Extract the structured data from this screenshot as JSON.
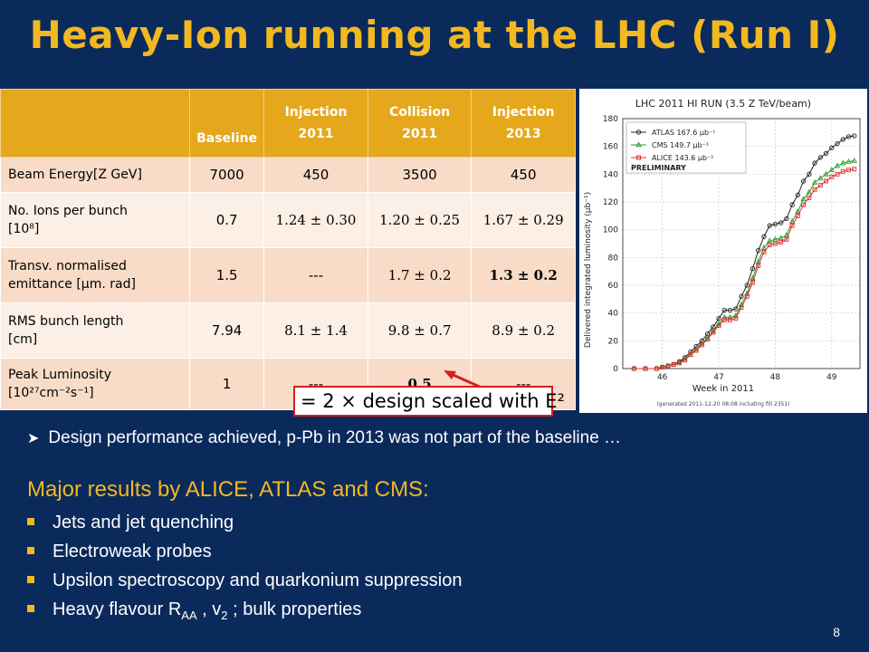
{
  "title": "Heavy-Ion running at the LHC  (Run I)",
  "table": {
    "headers": {
      "baseline": "Baseline",
      "inj2011": [
        "Injection",
        "2011"
      ],
      "col2011": [
        "Collision",
        "2011"
      ],
      "inj2013": [
        "Injection",
        "2013"
      ]
    },
    "rows": [
      {
        "param": "Beam Energy[Z GeV]",
        "values": [
          "7000",
          "450",
          "3500",
          "450"
        ]
      },
      {
        "param": "No. Ions per bunch",
        "unit": "[10⁸]",
        "values": [
          "0.7",
          "1.24 ± 0.30",
          "1.20 ± 0.25",
          "1.67 ± 0.29"
        ]
      },
      {
        "param": "Transv. normalised emittance",
        "unit": "[μm. rad]",
        "values": [
          "1.5",
          "---",
          "1.7 ± 0.2",
          "1.3 ± 0.2"
        ]
      },
      {
        "param": "RMS bunch length",
        "unit": "[cm]",
        "values": [
          "7.94",
          "8.1 ± 1.4",
          "9.8 ± 0.7",
          "8.9 ± 0.2"
        ]
      },
      {
        "param": "Peak Luminosity",
        "unit": "[10²⁷cm⁻²s⁻¹]",
        "values": [
          "1",
          "---",
          "0.5",
          "---"
        ]
      }
    ]
  },
  "callout": "= 2 × design scaled with E²",
  "design_note": "Design performance achieved,   p-Pb in 2013 was not part of the baseline …",
  "results": {
    "title": "Major results by ALICE, ATLAS and CMS:",
    "items": [
      "Jets and jet quenching",
      "Electroweak probes",
      "Upsilon spectroscopy and quarkonium suppression"
    ],
    "last_item": {
      "prefix": "Heavy flavour R",
      "sub1": "AA",
      "mid": " , v",
      "sub2": "2",
      "suffix": " ; bulk properties"
    }
  },
  "page_number": "8",
  "colors": {
    "background": "#0b2a5c",
    "accent": "#f2b820",
    "header": "#e5a81d",
    "atlas": "#222222",
    "cms": "#2a9d2a",
    "alice": "#e03030"
  },
  "chart_data": {
    "type": "line",
    "title": "LHC 2011 HI RUN (3.5 Z TeV/beam)",
    "xlabel": "Week in 2011",
    "ylabel": "Delivered integrated luminosity (μb⁻¹)",
    "xlim": [
      45.3,
      49.5
    ],
    "ylim": [
      0,
      180
    ],
    "xticks": [
      46,
      47,
      48,
      49
    ],
    "yticks": [
      0,
      20,
      40,
      60,
      80,
      100,
      120,
      140,
      160,
      180
    ],
    "grid": true,
    "legend_position": "top-left",
    "annotation": "PRELIMINARY",
    "footnote": "(generated 2011-12-20 08:08 including fill 2351)",
    "series": [
      {
        "name": "ATLAS 167.6 μb⁻¹",
        "color": "#222222",
        "marker": "circle",
        "x": [
          45.5,
          45.7,
          45.9,
          46.0,
          46.1,
          46.2,
          46.3,
          46.4,
          46.5,
          46.6,
          46.7,
          46.8,
          46.9,
          47.0,
          47.1,
          47.2,
          47.3,
          47.4,
          47.5,
          47.6,
          47.7,
          47.8,
          47.9,
          48.0,
          48.1,
          48.2,
          48.3,
          48.4,
          48.5,
          48.6,
          48.7,
          48.8,
          48.9,
          49.0,
          49.1,
          49.2,
          49.3,
          49.4
        ],
        "y": [
          0,
          0,
          0,
          1,
          2,
          3,
          5,
          8,
          12,
          16,
          20,
          25,
          30,
          36,
          42,
          42,
          43,
          52,
          60,
          72,
          85,
          95,
          103,
          104,
          105,
          108,
          118,
          125,
          135,
          140,
          148,
          152,
          155,
          159,
          162,
          165,
          167,
          167.6
        ]
      },
      {
        "name": "CMS 149.7 μb⁻¹",
        "color": "#2a9d2a",
        "marker": "triangle",
        "x": [
          45.5,
          45.7,
          45.9,
          46.0,
          46.1,
          46.2,
          46.3,
          46.4,
          46.5,
          46.6,
          46.7,
          46.8,
          46.9,
          47.0,
          47.1,
          47.2,
          47.3,
          47.4,
          47.5,
          47.6,
          47.7,
          47.8,
          47.9,
          48.0,
          48.1,
          48.2,
          48.3,
          48.4,
          48.5,
          48.6,
          48.7,
          48.8,
          48.9,
          49.0,
          49.1,
          49.2,
          49.3,
          49.4
        ],
        "y": [
          0,
          0,
          0,
          1,
          2,
          3,
          4,
          7,
          10,
          14,
          18,
          22,
          27,
          32,
          37,
          37,
          38,
          46,
          54,
          65,
          77,
          87,
          92,
          93,
          94,
          96,
          106,
          113,
          122,
          127,
          134,
          137,
          140,
          143,
          146,
          148,
          149,
          149.7
        ]
      },
      {
        "name": "ALICE 143.6 μb⁻¹",
        "color": "#e03030",
        "marker": "square",
        "x": [
          45.5,
          45.7,
          45.9,
          46.0,
          46.1,
          46.2,
          46.3,
          46.4,
          46.5,
          46.6,
          46.7,
          46.8,
          46.9,
          47.0,
          47.1,
          47.2,
          47.3,
          47.4,
          47.5,
          47.6,
          47.7,
          47.8,
          47.9,
          48.0,
          48.1,
          48.2,
          48.3,
          48.4,
          48.5,
          48.6,
          48.7,
          48.8,
          48.9,
          49.0,
          49.1,
          49.2,
          49.3,
          49.4
        ],
        "y": [
          0,
          0,
          0,
          1,
          2,
          3,
          4,
          6,
          10,
          13,
          17,
          21,
          26,
          31,
          35,
          35,
          36,
          44,
          52,
          62,
          74,
          84,
          89,
          90,
          91,
          93,
          103,
          110,
          118,
          123,
          129,
          132,
          135,
          138,
          140,
          142,
          143,
          143.6
        ]
      }
    ]
  }
}
